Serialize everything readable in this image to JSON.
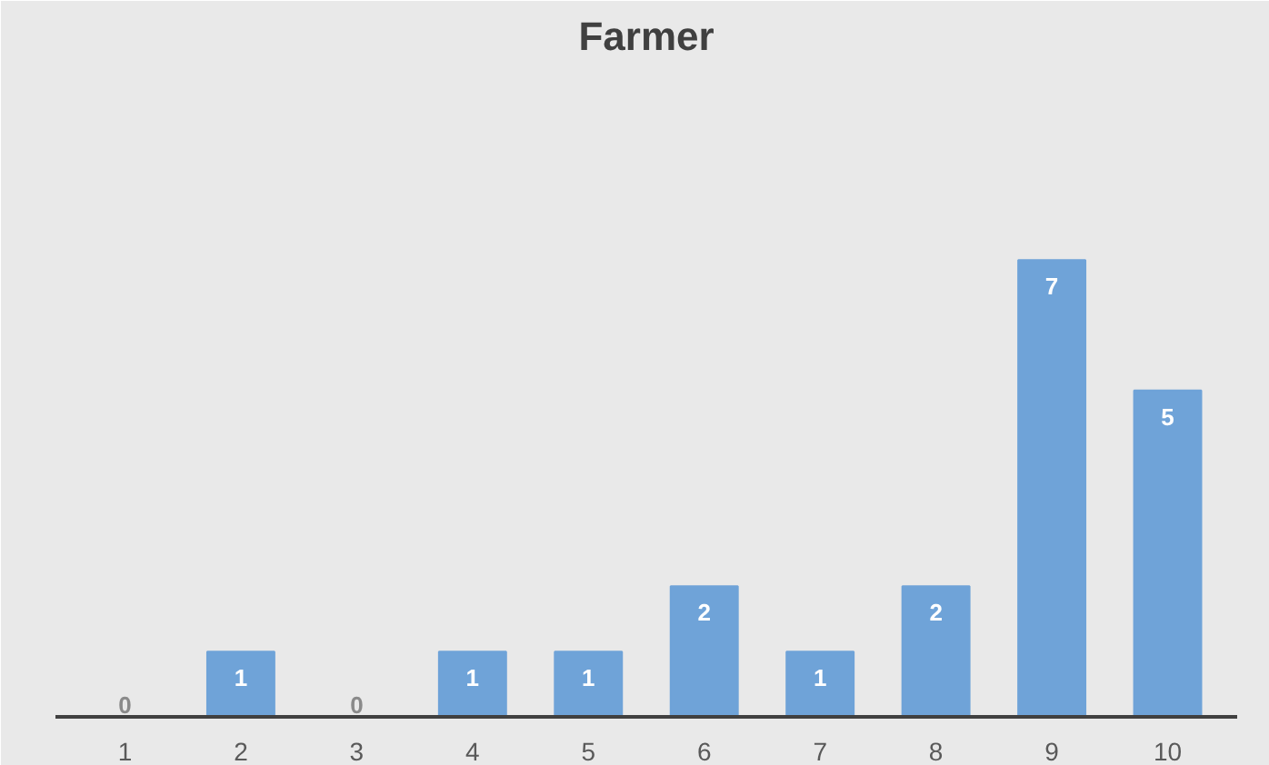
{
  "chart_data": {
    "type": "bar",
    "title": "Farmer",
    "categories": [
      "1",
      "2",
      "3",
      "4",
      "5",
      "6",
      "7",
      "8",
      "9",
      "10"
    ],
    "values": [
      0,
      1,
      0,
      1,
      1,
      2,
      1,
      2,
      7,
      5
    ],
    "color": "#6fa3d8",
    "data_labels": true
  }
}
